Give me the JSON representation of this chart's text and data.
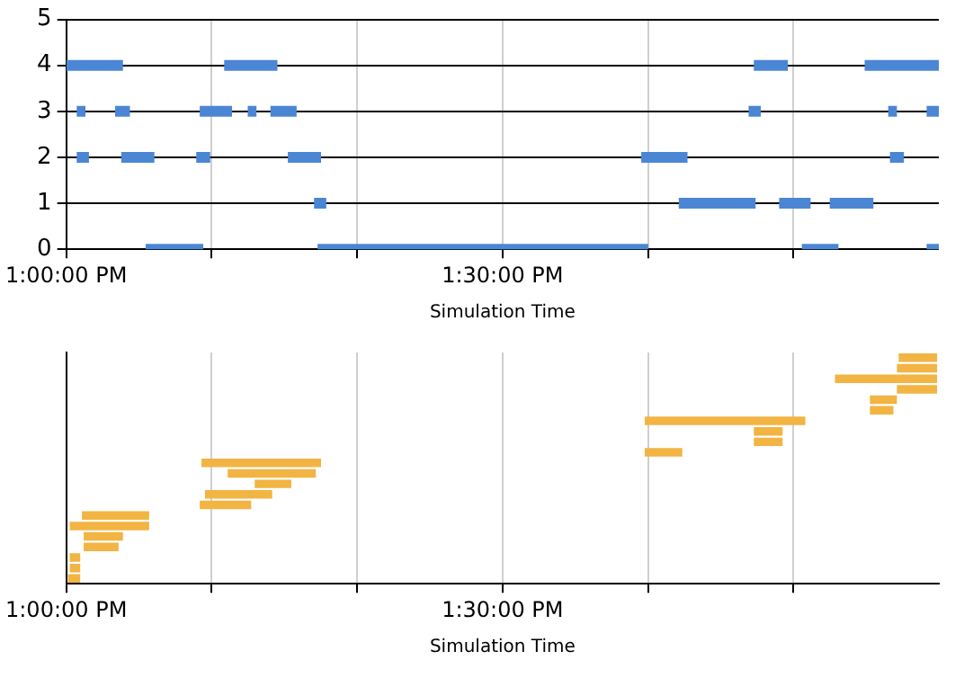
{
  "chart_data": [
    {
      "type": "line",
      "xlabel": "Simulation Time",
      "xlim": [
        13,
        14
      ],
      "xticks": [
        {
          "value": 13,
          "label": "1:00:00 PM"
        },
        {
          "value": 13.1667,
          "label": null
        },
        {
          "value": 13.3333,
          "label": null
        },
        {
          "value": 13.5,
          "label": "1:30:00 PM"
        },
        {
          "value": 13.6667,
          "label": null
        },
        {
          "value": 13.8333,
          "label": null
        }
      ],
      "ylim": [
        0,
        5
      ],
      "yticks": [
        0,
        1,
        2,
        3,
        4,
        5
      ],
      "grid": true,
      "legend": false,
      "series": [
        {
          "color": "#4a86d4",
          "x": [
            13,
            13.065
          ],
          "values": [
            4,
            4
          ]
        },
        {
          "color": "#4a86d4",
          "x": [
            13.181,
            13.242
          ],
          "values": [
            4,
            4
          ]
        },
        {
          "color": "#4a86d4",
          "x": [
            13.788,
            13.827
          ],
          "values": [
            4,
            4
          ]
        },
        {
          "color": "#4a86d4",
          "x": [
            13.915,
            14.0
          ],
          "values": [
            4,
            4
          ]
        },
        {
          "color": "#4a86d4",
          "x": [
            13.012,
            13.022
          ],
          "values": [
            3,
            3
          ]
        },
        {
          "color": "#4a86d4",
          "x": [
            13.056,
            13.073
          ],
          "values": [
            3,
            3
          ]
        },
        {
          "color": "#4a86d4",
          "x": [
            13.153,
            13.19
          ],
          "values": [
            3,
            3
          ]
        },
        {
          "color": "#4a86d4",
          "x": [
            13.208,
            13.218
          ],
          "values": [
            3,
            3
          ]
        },
        {
          "color": "#4a86d4",
          "x": [
            13.234,
            13.264
          ],
          "values": [
            3,
            3
          ]
        },
        {
          "color": "#4a86d4",
          "x": [
            13.782,
            13.796
          ],
          "values": [
            3,
            3
          ]
        },
        {
          "color": "#4a86d4",
          "x": [
            13.942,
            13.952
          ],
          "values": [
            3,
            3
          ]
        },
        {
          "color": "#4a86d4",
          "x": [
            13.986,
            14.0
          ],
          "values": [
            3,
            3
          ]
        },
        {
          "color": "#4a86d4",
          "x": [
            13.012,
            13.026
          ],
          "values": [
            2,
            2
          ]
        },
        {
          "color": "#4a86d4",
          "x": [
            13.063,
            13.101
          ],
          "values": [
            2,
            2
          ]
        },
        {
          "color": "#4a86d4",
          "x": [
            13.149,
            13.165
          ],
          "values": [
            2,
            2
          ]
        },
        {
          "color": "#4a86d4",
          "x": [
            13.254,
            13.292
          ],
          "values": [
            2,
            2
          ]
        },
        {
          "color": "#4a86d4",
          "x": [
            13.659,
            13.712
          ],
          "values": [
            2,
            2
          ]
        },
        {
          "color": "#4a86d4",
          "x": [
            13.944,
            13.96
          ],
          "values": [
            2,
            2
          ]
        },
        {
          "color": "#4a86d4",
          "x": [
            13.284,
            13.298
          ],
          "values": [
            1,
            1
          ]
        },
        {
          "color": "#4a86d4",
          "x": [
            13.702,
            13.79
          ],
          "values": [
            1,
            1
          ]
        },
        {
          "color": "#4a86d4",
          "x": [
            13.817,
            13.853
          ],
          "values": [
            1,
            1
          ]
        },
        {
          "color": "#4a86d4",
          "x": [
            13.875,
            13.925
          ],
          "values": [
            1,
            1
          ]
        },
        {
          "color": "#4a86d4",
          "x": [
            13.091,
            13.157
          ],
          "values": [
            0,
            0
          ]
        },
        {
          "color": "#4a86d4",
          "x": [
            13.288,
            13.667
          ],
          "values": [
            0,
            0
          ]
        },
        {
          "color": "#4a86d4",
          "x": [
            13.843,
            13.885
          ],
          "values": [
            0,
            0
          ]
        },
        {
          "color": "#4a86d4",
          "x": [
            13.986,
            14.0
          ],
          "values": [
            0,
            0
          ]
        }
      ]
    },
    {
      "type": "bar",
      "orientation": "horizontal",
      "xlabel": "Simulation Time",
      "xlim": [
        13,
        14
      ],
      "xticks": [
        {
          "value": 13,
          "label": "1:00:00 PM"
        },
        {
          "value": 13.1667,
          "label": null
        },
        {
          "value": 13.3333,
          "label": null
        },
        {
          "value": 13.5,
          "label": "1:30:00 PM"
        },
        {
          "value": 13.6667,
          "label": null
        },
        {
          "value": 13.8333,
          "label": null
        }
      ],
      "grid": "x",
      "legend": false,
      "tick_labels": "x",
      "color": "#f2b443",
      "categories": [
        null,
        null,
        null,
        null,
        null,
        null,
        null,
        null,
        null,
        null,
        null,
        null,
        null,
        null,
        null,
        null,
        null,
        null,
        null,
        null,
        null,
        null
      ],
      "base": [
        13.954,
        13.952,
        13.881,
        13.952,
        13.921,
        13.921,
        13.663,
        13.788,
        13.788,
        13.663,
        13.155,
        13.185,
        13.216,
        13.159,
        13.153,
        13.018,
        13.004,
        13.02,
        13.02,
        13.004,
        13.004,
        13.002
      ],
      "values": [
        0.044,
        0.046,
        0.117,
        0.046,
        0.031,
        0.027,
        0.184,
        0.033,
        0.033,
        0.043,
        0.137,
        0.101,
        0.042,
        0.077,
        0.059,
        0.077,
        0.091,
        0.045,
        0.04,
        0.012,
        0.012,
        0.014
      ]
    }
  ]
}
